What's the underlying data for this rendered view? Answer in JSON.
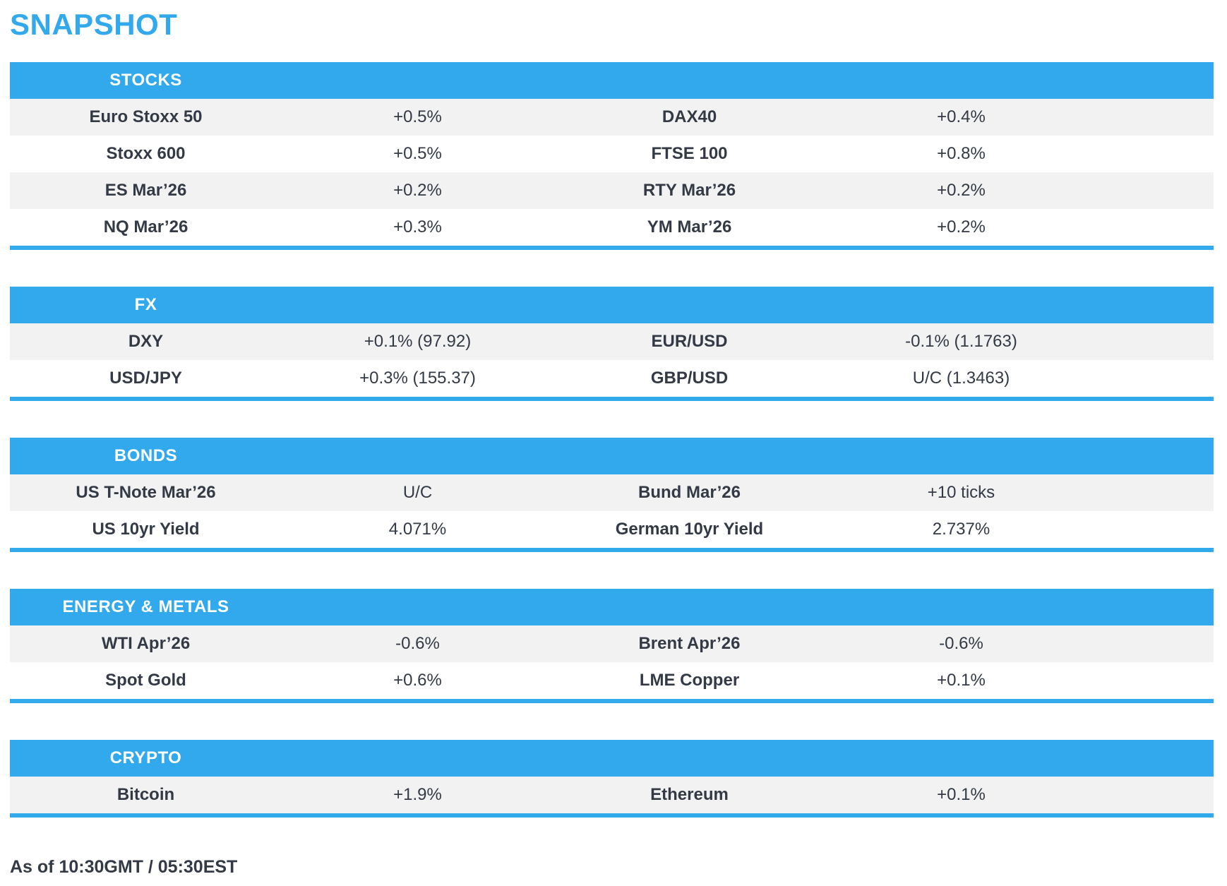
{
  "page": {
    "title": "SNAPSHOT",
    "footer": "As of 10:30GMT / 05:30EST"
  },
  "colors": {
    "accent": "#31a9ec",
    "header_text": "#ffffff",
    "row_alt": "#f2f2f2",
    "text": "#333a45"
  },
  "sections": [
    {
      "header": "STOCKS",
      "rows": [
        [
          "Euro Stoxx 50",
          "+0.5%",
          "DAX40",
          "+0.4%"
        ],
        [
          "Stoxx 600",
          "+0.5%",
          "FTSE 100",
          "+0.8%"
        ],
        [
          "ES Mar’26",
          "+0.2%",
          "RTY Mar’26",
          "+0.2%"
        ],
        [
          "NQ Mar’26",
          "+0.3%",
          "YM Mar’26",
          "+0.2%"
        ]
      ]
    },
    {
      "header": "FX",
      "rows": [
        [
          "DXY",
          "+0.1% (97.92)",
          "EUR/USD",
          "-0.1% (1.1763)"
        ],
        [
          "USD/JPY",
          "+0.3% (155.37)",
          "GBP/USD",
          "U/C (1.3463)"
        ]
      ]
    },
    {
      "header": "BONDS",
      "rows": [
        [
          "US T-Note Mar’26",
          "U/C",
          "Bund Mar’26",
          "+10 ticks"
        ],
        [
          "US 10yr Yield",
          "4.071%",
          "German 10yr Yield",
          "2.737%"
        ]
      ]
    },
    {
      "header": "ENERGY & METALS",
      "rows": [
        [
          "WTI Apr’26",
          "-0.6%",
          "Brent Apr’26",
          "-0.6%"
        ],
        [
          "Spot Gold",
          "+0.6%",
          "LME Copper",
          "+0.1%"
        ]
      ]
    },
    {
      "header": "CRYPTO",
      "rows": [
        [
          "Bitcoin",
          "+1.9%",
          "Ethereum",
          "+0.1%"
        ]
      ]
    }
  ]
}
